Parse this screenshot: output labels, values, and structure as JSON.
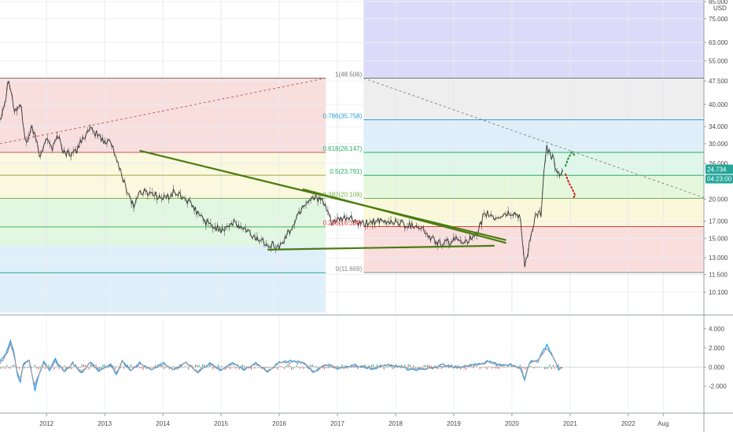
{
  "chart_data": {
    "type": "line",
    "currency": "USD",
    "price_axis": {
      "log_scale": true,
      "ticks": [
        "85.000",
        "75.000",
        "63.000",
        "55.000",
        "47.500",
        "40.000",
        "34.000",
        "30.000",
        "26.000",
        "20.000",
        "17.000",
        "15.000",
        "13.000",
        "11.500",
        "10.100"
      ],
      "tick_values": [
        85,
        75,
        63,
        55,
        47.5,
        40,
        34,
        30,
        26,
        20,
        17,
        15,
        13,
        11.5,
        10.1
      ],
      "ylim": [
        8.7,
        86
      ]
    },
    "time_axis": {
      "labels": [
        "2012",
        "2013",
        "2014",
        "2015",
        "2016",
        "2017",
        "2018",
        "2019",
        "2020",
        "2021",
        "2022",
        "Aug"
      ],
      "xlim": [
        2011.2,
        2023.3
      ]
    },
    "last_price": {
      "value": 24.734,
      "label": "24.734",
      "countdown": "04:23:00",
      "color": "#26a69a"
    },
    "price_series": {
      "name": "",
      "color": "#333333",
      "anchors": [
        [
          2011.2,
          36
        ],
        [
          2011.3,
          42
        ],
        [
          2011.35,
          49
        ],
        [
          2011.45,
          38
        ],
        [
          2011.55,
          40
        ],
        [
          2011.65,
          30
        ],
        [
          2011.75,
          34
        ],
        [
          2011.9,
          27
        ],
        [
          2012.0,
          32
        ],
        [
          2012.1,
          29
        ],
        [
          2012.2,
          32
        ],
        [
          2012.3,
          28
        ],
        [
          2012.5,
          28
        ],
        [
          2012.6,
          31
        ],
        [
          2012.75,
          33
        ],
        [
          2012.9,
          32
        ],
        [
          2013.0,
          30
        ],
        [
          2013.1,
          31
        ],
        [
          2013.25,
          25
        ],
        [
          2013.4,
          21
        ],
        [
          2013.5,
          19
        ],
        [
          2013.6,
          21
        ],
        [
          2013.8,
          21
        ],
        [
          2014.0,
          20
        ],
        [
          2014.2,
          21
        ],
        [
          2014.4,
          20
        ],
        [
          2014.6,
          18
        ],
        [
          2014.8,
          16.5
        ],
        [
          2015.0,
          16
        ],
        [
          2015.2,
          16.8
        ],
        [
          2015.4,
          16
        ],
        [
          2015.6,
          15
        ],
        [
          2015.8,
          14.5
        ],
        [
          2016.0,
          14
        ],
        [
          2016.2,
          16
        ],
        [
          2016.4,
          19
        ],
        [
          2016.6,
          20.5
        ],
        [
          2016.75,
          19.5
        ],
        [
          2016.9,
          17
        ],
        [
          2017.0,
          17
        ],
        [
          2017.2,
          17.5
        ],
        [
          2017.4,
          16.5
        ],
        [
          2017.6,
          17
        ],
        [
          2017.8,
          16.8
        ],
        [
          2018.0,
          17
        ],
        [
          2018.2,
          16.5
        ],
        [
          2018.4,
          16.5
        ],
        [
          2018.6,
          15
        ],
        [
          2018.8,
          14.3
        ],
        [
          2019.0,
          14.8
        ],
        [
          2019.2,
          14.8
        ],
        [
          2019.4,
          15.1
        ],
        [
          2019.5,
          17.5
        ],
        [
          2019.6,
          18
        ],
        [
          2019.7,
          17.3
        ],
        [
          2019.85,
          17.8
        ],
        [
          2020.0,
          18
        ],
        [
          2020.15,
          17.5
        ],
        [
          2020.22,
          12
        ],
        [
          2020.3,
          14.5
        ],
        [
          2020.4,
          17.5
        ],
        [
          2020.5,
          18
        ],
        [
          2020.55,
          24
        ],
        [
          2020.6,
          29
        ],
        [
          2020.7,
          27
        ],
        [
          2020.8,
          24
        ],
        [
          2020.88,
          24.7
        ]
      ],
      "projection": {
        "up": {
          "color": "#1e8e3e",
          "points": [
            [
              2020.92,
              25.5
            ],
            [
              2020.97,
              27
            ],
            [
              2021.03,
              28.2
            ],
            [
              2021.08,
              27.5
            ]
          ]
        },
        "down": {
          "color": "#cc1f1f",
          "points": [
            [
              2020.92,
              24
            ],
            [
              2020.98,
              22.5
            ],
            [
              2021.04,
              21.5
            ],
            [
              2021.09,
              20.5
            ],
            [
              2021.05,
              20.2
            ]
          ]
        }
      }
    },
    "fib_left": {
      "x_range": [
        2011.2,
        2016.8
      ],
      "levels": [
        48.5,
        28.15,
        23.8,
        20.1,
        16.3,
        11.65
      ],
      "trend_line": [
        [
          2011.2,
          30
        ],
        [
          2016.8,
          48.5
        ]
      ],
      "zones": [
        {
          "from": 48.5,
          "to": 28.15,
          "color": "#f4c2c2"
        },
        {
          "from": 28.15,
          "to": 20.1,
          "color": "#f6f3c2"
        },
        {
          "from": 20.1,
          "to": 14.2,
          "color": "#c9f0c9"
        },
        {
          "from": 14.2,
          "to": 8.7,
          "color": "#c6e4f5"
        }
      ]
    },
    "fib_right": {
      "x_range": [
        2017.45,
        2023.3
      ],
      "levels": [
        {
          "ratio": "1",
          "value": 48.506,
          "label": "1(48.506)",
          "color": "#777777"
        },
        {
          "ratio": "0.786",
          "value": 35.758,
          "label": "0.786(35.758)",
          "color": "#2a9fd6"
        },
        {
          "ratio": "0.618",
          "value": 28.147,
          "label": "0.618(28.147)",
          "color": "#27ae60"
        },
        {
          "ratio": "0.5",
          "value": 23.791,
          "label": "0.5(23.791)",
          "color": "#27ae60"
        },
        {
          "ratio": "0.382",
          "value": 20.109,
          "label": "0.382(20.109)",
          "color": "#7cb342"
        },
        {
          "ratio": "0.236",
          "value": 16.338,
          "label": "0.236(16.338)",
          "color": "#e53935"
        },
        {
          "ratio": "0",
          "value": 11.669,
          "label": "0(11.669)",
          "color": "#888888"
        }
      ],
      "zones": [
        {
          "from": 86,
          "to": 48.506,
          "color": "#cfcff7"
        },
        {
          "from": 48.506,
          "to": 35.758,
          "color": "#e8e8e8"
        },
        {
          "from": 35.758,
          "to": 28.147,
          "color": "#d3eaf7"
        },
        {
          "from": 28.147,
          "to": 23.791,
          "color": "#d4f3e3"
        },
        {
          "from": 23.791,
          "to": 20.109,
          "color": "#dcf5d0"
        },
        {
          "from": 20.109,
          "to": 16.338,
          "color": "#f7f5cf"
        },
        {
          "from": 16.338,
          "to": 11.669,
          "color": "#f8d3d3"
        }
      ],
      "trend_line": [
        [
          2017.45,
          48.5
        ],
        [
          2023.3,
          20.2
        ]
      ]
    },
    "trend_lines": [
      {
        "color": "#4a7d10",
        "points": [
          [
            2013.6,
            28.5
          ],
          [
            2019.9,
            14.8
          ]
        ]
      },
      {
        "color": "#4a7d10",
        "points": [
          [
            2016.4,
            21.5
          ],
          [
            2019.9,
            14.5
          ]
        ]
      },
      {
        "color": "#4a7d10",
        "points": [
          [
            2015.8,
            13.8
          ],
          [
            2019.7,
            14.2
          ]
        ]
      }
    ],
    "oscillator": {
      "ticks": [
        "4.000",
        "2.000",
        "0.000",
        "-2.000"
      ],
      "tick_values": [
        4,
        2,
        0,
        -2
      ],
      "ylim": [
        -4.5,
        5.2
      ],
      "series": [
        {
          "color": "#2196f3",
          "anchors": [
            [
              2011.2,
              0.5
            ],
            [
              2011.3,
              1.5
            ],
            [
              2011.38,
              2.8
            ],
            [
              2011.45,
              1.2
            ],
            [
              2011.5,
              -0.8
            ],
            [
              2011.55,
              -1.5
            ],
            [
              2011.6,
              0.3
            ],
            [
              2011.7,
              0.8
            ],
            [
              2011.8,
              -2.5
            ],
            [
              2011.85,
              -1.2
            ],
            [
              2011.95,
              0.5
            ],
            [
              2012.05,
              -0.3
            ],
            [
              2012.15,
              0.8
            ],
            [
              2012.3,
              -0.5
            ],
            [
              2012.45,
              0.4
            ],
            [
              2012.6,
              -0.6
            ],
            [
              2012.75,
              0.5
            ],
            [
              2012.9,
              -0.4
            ],
            [
              2013.1,
              0.3
            ],
            [
              2013.2,
              -0.8
            ],
            [
              2013.3,
              0.6
            ],
            [
              2013.45,
              -0.4
            ],
            [
              2013.6,
              0.4
            ],
            [
              2013.8,
              -0.3
            ],
            [
              2014.0,
              0.4
            ],
            [
              2014.2,
              -0.3
            ],
            [
              2014.4,
              0.5
            ],
            [
              2014.6,
              -0.6
            ],
            [
              2014.8,
              0.4
            ],
            [
              2015.0,
              -0.4
            ],
            [
              2015.2,
              0.5
            ],
            [
              2015.4,
              -0.3
            ],
            [
              2015.6,
              0.4
            ],
            [
              2015.8,
              -0.5
            ],
            [
              2016.0,
              0.5
            ],
            [
              2016.2,
              0.6
            ],
            [
              2016.4,
              0.5
            ],
            [
              2016.6,
              -0.6
            ],
            [
              2016.8,
              0.3
            ],
            [
              2017.0,
              -0.2
            ],
            [
              2017.3,
              0.2
            ],
            [
              2017.6,
              -0.2
            ],
            [
              2017.9,
              0.3
            ],
            [
              2018.2,
              -0.2
            ],
            [
              2018.5,
              -0.3
            ],
            [
              2018.8,
              0.2
            ],
            [
              2019.1,
              -0.1
            ],
            [
              2019.4,
              0.3
            ],
            [
              2019.6,
              0.6
            ],
            [
              2019.8,
              0.2
            ],
            [
              2020.0,
              0.3
            ],
            [
              2020.15,
              -0.2
            ],
            [
              2020.22,
              -1.5
            ],
            [
              2020.3,
              0.5
            ],
            [
              2020.45,
              0.8
            ],
            [
              2020.6,
              2.3
            ],
            [
              2020.7,
              1.2
            ],
            [
              2020.8,
              -0.2
            ],
            [
              2020.88,
              0.1
            ]
          ]
        },
        {
          "color": "#9e9e9e",
          "anchors": [
            [
              2011.2,
              0.3
            ],
            [
              2011.3,
              1.2
            ],
            [
              2011.38,
              2.4
            ],
            [
              2011.45,
              1.0
            ],
            [
              2011.5,
              -0.5
            ],
            [
              2011.55,
              -1.2
            ],
            [
              2011.6,
              0.2
            ],
            [
              2011.7,
              0.6
            ],
            [
              2011.8,
              -2.0
            ],
            [
              2011.85,
              -1.0
            ],
            [
              2011.95,
              0.4
            ],
            [
              2012.05,
              -0.2
            ],
            [
              2012.15,
              0.6
            ],
            [
              2012.3,
              -0.4
            ],
            [
              2012.45,
              0.3
            ],
            [
              2012.6,
              -0.5
            ],
            [
              2012.75,
              0.4
            ],
            [
              2012.9,
              -0.3
            ],
            [
              2013.1,
              0.2
            ],
            [
              2013.2,
              -0.6
            ],
            [
              2013.3,
              0.5
            ],
            [
              2013.45,
              -0.3
            ],
            [
              2013.6,
              0.3
            ],
            [
              2013.8,
              -0.2
            ],
            [
              2014.0,
              0.3
            ],
            [
              2014.2,
              -0.2
            ],
            [
              2014.4,
              0.4
            ],
            [
              2014.6,
              -0.5
            ],
            [
              2014.8,
              0.3
            ],
            [
              2015.0,
              -0.3
            ],
            [
              2015.2,
              0.4
            ],
            [
              2015.4,
              -0.2
            ],
            [
              2015.6,
              0.3
            ],
            [
              2015.8,
              -0.4
            ],
            [
              2016.0,
              0.4
            ],
            [
              2016.2,
              0.5
            ],
            [
              2016.4,
              0.4
            ],
            [
              2016.6,
              -0.5
            ],
            [
              2016.8,
              0.2
            ],
            [
              2017.0,
              -0.1
            ],
            [
              2017.3,
              0.1
            ],
            [
              2017.6,
              -0.1
            ],
            [
              2017.9,
              0.2
            ],
            [
              2018.2,
              -0.1
            ],
            [
              2018.5,
              -0.2
            ],
            [
              2018.8,
              0.1
            ],
            [
              2019.1,
              0.0
            ],
            [
              2019.4,
              0.2
            ],
            [
              2019.6,
              0.5
            ],
            [
              2019.8,
              0.1
            ],
            [
              2020.0,
              0.2
            ],
            [
              2020.15,
              -0.1
            ],
            [
              2020.22,
              -1.2
            ],
            [
              2020.3,
              0.4
            ],
            [
              2020.45,
              0.6
            ],
            [
              2020.6,
              2.0
            ],
            [
              2020.7,
              1.0
            ],
            [
              2020.8,
              -0.1
            ],
            [
              2020.88,
              0.0
            ]
          ]
        }
      ]
    }
  }
}
